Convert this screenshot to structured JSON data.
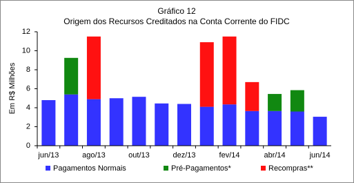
{
  "chart_data": {
    "type": "bar",
    "stacked": true,
    "title": "Gráfico 12",
    "subtitle": "Origem dos Recursos Creditados na Conta Corrente do FIDC",
    "y_label": "Em R$ Milhões",
    "categories": [
      "jun/13",
      null,
      "ago/13",
      null,
      "out/13",
      null,
      "dez/13",
      null,
      "fev/14",
      null,
      "abr/14",
      null,
      "jun/14"
    ],
    "series": [
      {
        "name": "Pagamentos Normais",
        "color": "#3333ff",
        "values": [
          4.8,
          5.4,
          4.9,
          5.0,
          5.15,
          4.45,
          4.4,
          4.1,
          4.35,
          3.65,
          3.65,
          3.6,
          3.05
        ]
      },
      {
        "name": "Pré-Pagamentos*",
        "color": "#118811",
        "values": [
          0,
          3.85,
          0,
          0,
          0,
          0,
          0,
          0,
          0,
          0,
          1.8,
          2.25,
          0
        ]
      },
      {
        "name": "Recompras**",
        "color": "#ff1111",
        "values": [
          0,
          0,
          6.6,
          0,
          0,
          0,
          0,
          6.8,
          7.15,
          3.05,
          0,
          0,
          0
        ]
      }
    ],
    "ylim": [
      0,
      12
    ],
    "yticks": [
      0,
      2,
      4,
      6,
      8,
      10,
      12
    ],
    "grid": false,
    "legend": "bottom"
  }
}
